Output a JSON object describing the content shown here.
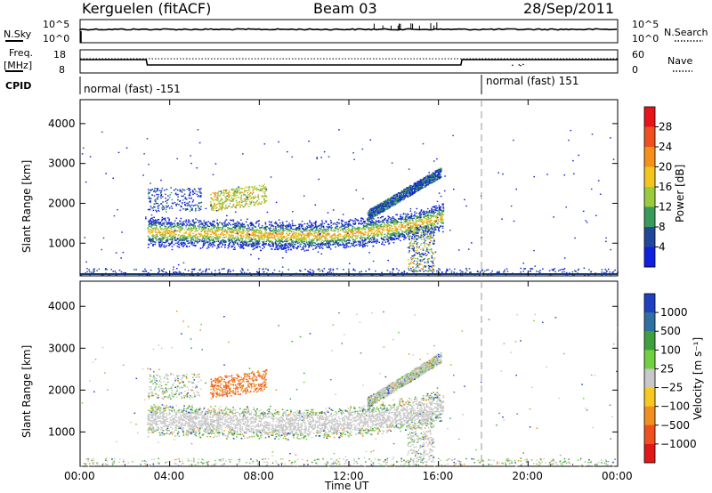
{
  "header": {
    "station": "Kerguelen (fitACF)",
    "beam": "Beam 03",
    "date": "28/Sep/2011"
  },
  "noise_panel": {
    "left_label": "N.Sky",
    "right_label": "N.Search",
    "left_ticks": [
      "10^5",
      "10^0"
    ],
    "right_ticks": [
      "10^5",
      "10^0"
    ]
  },
  "freq_panel": {
    "left_label_line1": "Freq.",
    "left_label_line2": "[MHz]",
    "right_label": "Nave",
    "left_ticks": [
      "18",
      "8"
    ],
    "right_ticks": [
      "60",
      "0"
    ]
  },
  "cpid_panel": {
    "label": "CPID",
    "modes": [
      {
        "name": "normal (fast) -151",
        "start_hour": 0
      },
      {
        "name": "normal (fast) 151",
        "start_hour": 18
      }
    ]
  },
  "time_axis": {
    "label": "Time UT",
    "ticks": [
      "00:00",
      "04:00",
      "08:00",
      "12:00",
      "16:00",
      "20:00",
      "00:00"
    ]
  },
  "chart_data": [
    {
      "type": "heatmap",
      "name": "power",
      "ylabel": "Slant Range [km]",
      "yticks": [
        1000,
        2000,
        3000,
        4000
      ],
      "ylim": [
        180,
        4600
      ],
      "xlim_hours": [
        0,
        24
      ],
      "colorbar": {
        "label": "Power [dB]",
        "ticks": [
          "28",
          "24",
          "20",
          "16",
          "12",
          "8",
          "4"
        ],
        "colors": [
          "#e8141c",
          "#f05020",
          "#f5901a",
          "#f2c61e",
          "#9acb3c",
          "#3a9a5a",
          "#20489a",
          "#1020e0"
        ]
      },
      "features": [
        {
          "band": "main echo",
          "from_hour": 3.0,
          "to_hour": 16.2,
          "range_start_km": 1300,
          "range_end_km": 2400,
          "dominant": "strong"
        },
        {
          "band": "upper echo",
          "from_hour": 13.5,
          "to_hour": 16.0,
          "range_start_km": 1900,
          "range_end_km": 3000,
          "dominant": "medium"
        },
        {
          "band": "patch",
          "from_hour": 5.8,
          "to_hour": 8.3,
          "range_start_km": 2000,
          "range_end_km": 2500,
          "dominant": "medium"
        }
      ]
    },
    {
      "type": "heatmap",
      "name": "velocity",
      "ylabel": "Slant Range [km]",
      "yticks": [
        1000,
        2000,
        3000,
        4000
      ],
      "ylim": [
        180,
        4600
      ],
      "xlim_hours": [
        0,
        24
      ],
      "colorbar": {
        "label": "Velocity [m s⁻¹]",
        "ticks": [
          "1000",
          "500",
          "100",
          "25",
          "−25",
          "−100",
          "−500",
          "−1000"
        ],
        "colors": [
          "#2040c0",
          "#3070a0",
          "#40a040",
          "#70d040",
          "#c8c8c8",
          "#f8c820",
          "#f09020",
          "#f05020",
          "#e01818"
        ]
      },
      "features": [
        {
          "band": "main echo",
          "from_hour": 3.0,
          "to_hour": 16.2,
          "range_start_km": 1200,
          "range_end_km": 2200,
          "dominant": "ground scatter"
        },
        {
          "band": "patch",
          "from_hour": 5.8,
          "to_hour": 8.3,
          "range_start_km": 2000,
          "range_end_km": 2500,
          "dominant": "negative"
        }
      ]
    }
  ]
}
